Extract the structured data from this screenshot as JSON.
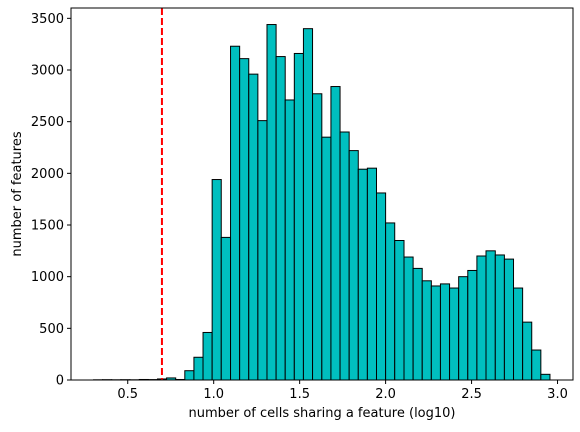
{
  "chart_data": {
    "type": "bar",
    "subtype": "histogram",
    "title": "",
    "xlabel": "number of cells sharing a feature (log10)",
    "ylabel": "number of features",
    "xlim": [
      0.17,
      3.09
    ],
    "ylim": [
      0,
      3600
    ],
    "bar_color": "#00BFBF",
    "edge_color": "#000000",
    "threshold_line": {
      "x": 0.699,
      "color": "#FF0000",
      "style": "dashed"
    },
    "xticks": [
      0.5,
      1.0,
      1.5,
      2.0,
      2.5,
      3.0
    ],
    "xtick_labels": [
      "0.5",
      "1.0",
      "1.5",
      "2.0",
      "2.5",
      "3.0"
    ],
    "yticks": [
      0,
      500,
      1000,
      1500,
      2000,
      2500,
      3000,
      3500
    ],
    "ytick_labels": [
      "0",
      "500",
      "1000",
      "1500",
      "2000",
      "2500",
      "3000",
      "3500"
    ],
    "bin_edges": [
      0.301,
      0.354,
      0.407,
      0.46,
      0.513,
      0.567,
      0.62,
      0.673,
      0.726,
      0.779,
      0.832,
      0.885,
      0.938,
      0.991,
      1.044,
      1.098,
      1.151,
      1.204,
      1.257,
      1.31,
      1.363,
      1.416,
      1.469,
      1.522,
      1.575,
      1.629,
      1.682,
      1.735,
      1.788,
      1.841,
      1.894,
      1.947,
      2.0,
      2.053,
      2.107,
      2.16,
      2.213,
      2.266,
      2.319,
      2.372,
      2.425,
      2.478,
      2.531,
      2.584,
      2.638,
      2.691,
      2.744,
      2.797,
      2.85,
      2.903,
      2.956
    ],
    "values": [
      2,
      3,
      2,
      3,
      2,
      5,
      4,
      10,
      20,
      5,
      90,
      220,
      460,
      1940,
      1380,
      3230,
      3110,
      2960,
      2510,
      3440,
      3130,
      2710,
      3160,
      3400,
      2770,
      2350,
      2840,
      2400,
      2220,
      2040,
      2050,
      1810,
      1520,
      1350,
      1190,
      1080,
      960,
      910,
      930,
      890,
      1000,
      1060,
      1200,
      1250,
      1210,
      1170,
      890,
      560,
      290,
      55
    ]
  }
}
